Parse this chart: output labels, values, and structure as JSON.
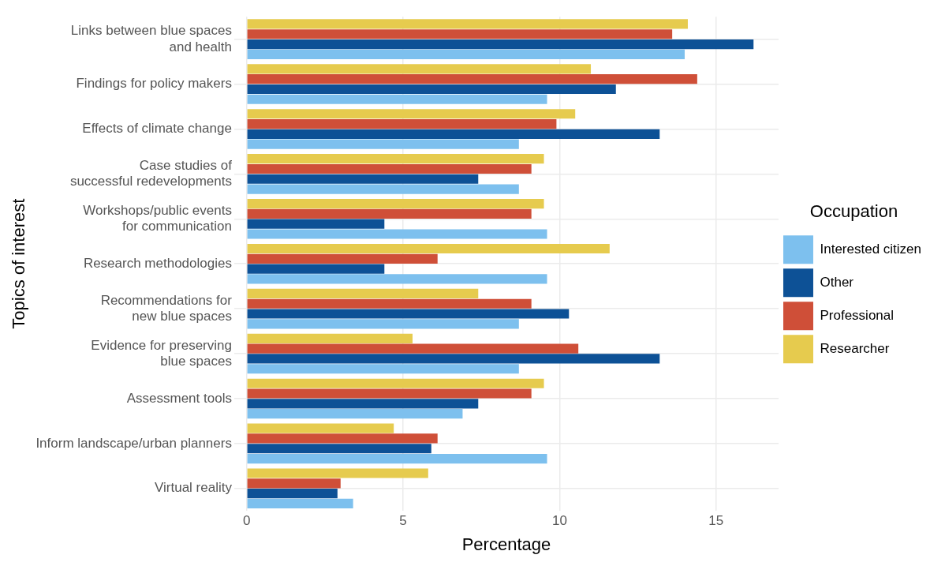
{
  "chart_data": {
    "type": "bar",
    "orientation": "horizontal",
    "xlabel": "Percentage",
    "ylabel": "Topics of interest",
    "legend_title": "Occupation",
    "categories": [
      "Links between blue spaces\nand health",
      "Findings for policy makers",
      "Effects of climate change",
      "Case studies of\nsuccessful redevelopments",
      "Workshops/public events\nfor communication",
      "Research methodologies",
      "Recommendations for\nnew blue spaces",
      "Evidence for preserving\nblue spaces",
      "Assessment tools",
      "Inform landscape/urban planners",
      "Virtual reality"
    ],
    "series": [
      {
        "name": "Researcher",
        "color": "#e6cb4e",
        "values": [
          14.1,
          11.0,
          10.5,
          9.5,
          9.5,
          11.6,
          7.4,
          5.3,
          9.5,
          4.7,
          5.8
        ]
      },
      {
        "name": "Professional",
        "color": "#cf4f38",
        "values": [
          13.6,
          14.4,
          9.9,
          9.1,
          9.1,
          6.1,
          9.1,
          10.6,
          9.1,
          6.1,
          3.0
        ]
      },
      {
        "name": "Other",
        "color": "#0d5196",
        "values": [
          16.2,
          11.8,
          13.2,
          7.4,
          4.4,
          4.4,
          10.3,
          13.2,
          7.4,
          5.9,
          2.9
        ]
      },
      {
        "name": "Interested citizen",
        "color": "#7dc0ee",
        "values": [
          14.0,
          9.6,
          8.7,
          8.7,
          9.6,
          9.6,
          8.7,
          8.7,
          6.9,
          9.6,
          3.4
        ]
      }
    ],
    "xlim": [
      -0.4,
      17
    ],
    "xticks": [
      0,
      5,
      10,
      15
    ],
    "grid": true,
    "legend": "right"
  }
}
